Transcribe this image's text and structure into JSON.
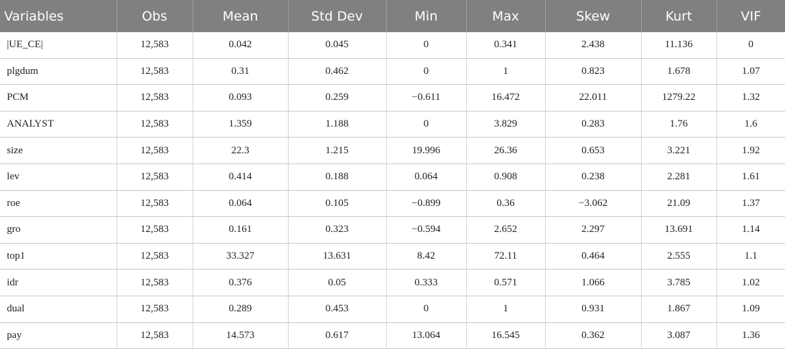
{
  "table": {
    "header": [
      "Variables",
      "Obs",
      "Mean",
      "Std Dev",
      "Min",
      "Max",
      "Skew",
      "Kurt",
      "VIF"
    ],
    "rows": [
      [
        "|UE_CE|",
        "12,583",
        "0.042",
        "0.045",
        "0",
        "0.341",
        "2.438",
        "11.136",
        "0"
      ],
      [
        "plgdum",
        "12,583",
        "0.31",
        "0.462",
        "0",
        "1",
        "0.823",
        "1.678",
        "1.07"
      ],
      [
        "PCM",
        "12,583",
        "0.093",
        "0.259",
        "−0.611",
        "16.472",
        "22.011",
        "1279.22",
        "1.32"
      ],
      [
        "ANALYST",
        "12,583",
        "1.359",
        "1.188",
        "0",
        "3.829",
        "0.283",
        "1.76",
        "1.6"
      ],
      [
        "size",
        "12,583",
        "22.3",
        "1.215",
        "19.996",
        "26.36",
        "0.653",
        "3.221",
        "1.92"
      ],
      [
        "lev",
        "12,583",
        "0.414",
        "0.188",
        "0.064",
        "0.908",
        "0.238",
        "2.281",
        "1.61"
      ],
      [
        "roe",
        "12,583",
        "0.064",
        "0.105",
        "−0.899",
        "0.36",
        "−3.062",
        "21.09",
        "1.37"
      ],
      [
        "gro",
        "12,583",
        "0.161",
        "0.323",
        "−0.594",
        "2.652",
        "2.297",
        "13.691",
        "1.14"
      ],
      [
        "top1",
        "12,583",
        "33.327",
        "13.631",
        "8.42",
        "72.11",
        "0.464",
        "2.555",
        "1.1"
      ],
      [
        "idr",
        "12,583",
        "0.376",
        "0.05",
        "0.333",
        "0.571",
        "1.066",
        "3.785",
        "1.02"
      ],
      [
        "dual",
        "12,583",
        "0.289",
        "0.453",
        "0",
        "1",
        "0.931",
        "1.867",
        "1.09"
      ],
      [
        "pay",
        "12,583",
        "14.573",
        "0.617",
        "13.064",
        "16.545",
        "0.362",
        "3.087",
        "1.36"
      ]
    ]
  }
}
